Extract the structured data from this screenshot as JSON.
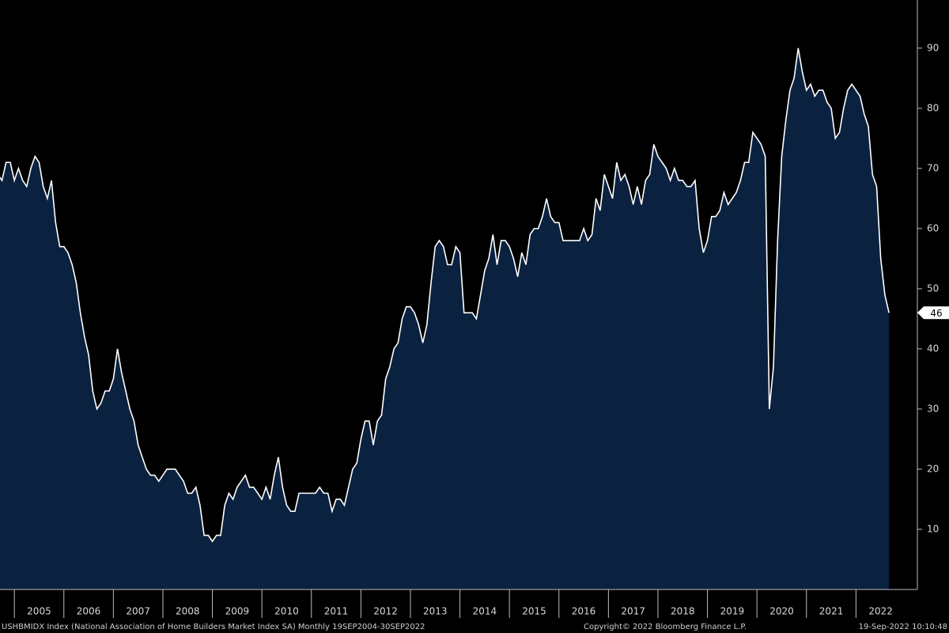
{
  "chart_data": {
    "type": "area",
    "series_name": "USHBMIDX Index (National Association of Home Builders Market Index SA)  Monthly 19SEP2004-30SEP2022",
    "copyright": "Copyright© 2022 Bloomberg Finance L.P.",
    "timestamp": "19-Sep-2022 10:10:48",
    "line_color": "#ffffff",
    "fill_color": "#0b2140",
    "x": [
      2004.667,
      2004.75,
      2004.833,
      2004.917,
      2005,
      2005.083,
      2005.167,
      2005.25,
      2005.333,
      2005.417,
      2005.5,
      2005.583,
      2005.667,
      2005.75,
      2005.833,
      2005.917,
      2006,
      2006.083,
      2006.167,
      2006.25,
      2006.333,
      2006.417,
      2006.5,
      2006.583,
      2006.667,
      2006.75,
      2006.833,
      2006.917,
      2007,
      2007.083,
      2007.167,
      2007.25,
      2007.333,
      2007.417,
      2007.5,
      2007.583,
      2007.667,
      2007.75,
      2007.833,
      2007.917,
      2008,
      2008.083,
      2008.167,
      2008.25,
      2008.333,
      2008.417,
      2008.5,
      2008.583,
      2008.667,
      2008.75,
      2008.833,
      2008.917,
      2009,
      2009.083,
      2009.167,
      2009.25,
      2009.333,
      2009.417,
      2009.5,
      2009.583,
      2009.667,
      2009.75,
      2009.833,
      2009.917,
      2010,
      2010.083,
      2010.167,
      2010.25,
      2010.333,
      2010.417,
      2010.5,
      2010.583,
      2010.667,
      2010.75,
      2010.833,
      2010.917,
      2011,
      2011.083,
      2011.167,
      2011.25,
      2011.333,
      2011.417,
      2011.5,
      2011.583,
      2011.667,
      2011.75,
      2011.833,
      2011.917,
      2012,
      2012.083,
      2012.167,
      2012.25,
      2012.333,
      2012.417,
      2012.5,
      2012.583,
      2012.667,
      2012.75,
      2012.833,
      2012.917,
      2013,
      2013.083,
      2013.167,
      2013.25,
      2013.333,
      2013.417,
      2013.5,
      2013.583,
      2013.667,
      2013.75,
      2013.833,
      2013.917,
      2014,
      2014.083,
      2014.167,
      2014.25,
      2014.333,
      2014.417,
      2014.5,
      2014.583,
      2014.667,
      2014.75,
      2014.833,
      2014.917,
      2015,
      2015.083,
      2015.167,
      2015.25,
      2015.333,
      2015.417,
      2015.5,
      2015.583,
      2015.667,
      2015.75,
      2015.833,
      2015.917,
      2016,
      2016.083,
      2016.167,
      2016.25,
      2016.333,
      2016.417,
      2016.5,
      2016.583,
      2016.667,
      2016.75,
      2016.833,
      2016.917,
      2017,
      2017.083,
      2017.167,
      2017.25,
      2017.333,
      2017.417,
      2017.5,
      2017.583,
      2017.667,
      2017.75,
      2017.833,
      2017.917,
      2018,
      2018.083,
      2018.167,
      2018.25,
      2018.333,
      2018.417,
      2018.5,
      2018.583,
      2018.667,
      2018.75,
      2018.833,
      2018.917,
      2019,
      2019.083,
      2019.167,
      2019.25,
      2019.333,
      2019.417,
      2019.5,
      2019.583,
      2019.667,
      2019.75,
      2019.833,
      2019.917,
      2020,
      2020.083,
      2020.167,
      2020.25,
      2020.333,
      2020.417,
      2020.5,
      2020.583,
      2020.667,
      2020.75,
      2020.833,
      2020.917,
      2021,
      2021.083,
      2021.167,
      2021.25,
      2021.333,
      2021.417,
      2021.5,
      2021.583,
      2021.667,
      2021.75,
      2021.833,
      2021.917,
      2022,
      2022.083,
      2022.167,
      2022.25,
      2022.333,
      2022.417,
      2022.5,
      2022.583,
      2022.667
    ],
    "values": [
      69,
      68,
      71,
      71,
      68,
      70,
      68,
      67,
      70,
      72,
      71,
      67,
      65,
      68,
      61,
      57,
      57,
      56,
      54,
      51,
      46,
      42,
      39,
      33,
      30,
      31,
      33,
      33,
      35,
      40,
      36,
      33,
      30,
      28,
      24,
      22,
      20,
      19,
      19,
      18,
      19,
      20,
      20,
      20,
      19,
      18,
      16,
      16,
      17,
      14,
      9,
      9,
      8,
      9,
      9,
      14,
      16,
      15,
      17,
      18,
      19,
      17,
      17,
      16,
      15,
      17,
      15,
      19,
      22,
      17,
      14,
      13,
      13,
      16,
      16,
      16,
      16,
      16,
      17,
      16,
      16,
      13,
      15,
      15,
      14,
      17,
      20,
      21,
      25,
      28,
      28,
      24,
      28,
      29,
      35,
      37,
      40,
      41,
      45,
      47,
      47,
      46,
      44,
      41,
      44,
      51,
      57,
      58,
      57,
      54,
      54,
      57,
      56,
      46,
      46,
      46,
      45,
      49,
      53,
      55,
      59,
      54,
      58,
      58,
      57,
      55,
      52,
      56,
      54,
      59,
      60,
      60,
      62,
      65,
      62,
      61,
      61,
      58,
      58,
      58,
      58,
      58,
      60,
      58,
      59,
      65,
      63,
      69,
      67,
      65,
      71,
      68,
      69,
      67,
      64,
      67,
      64,
      68,
      69,
      74,
      72,
      71,
      70,
      68,
      70,
      68,
      68,
      67,
      67,
      68,
      60,
      56,
      58,
      62,
      62,
      63,
      66,
      64,
      65,
      66,
      68,
      71,
      71,
      76,
      75,
      74,
      72,
      30,
      37,
      58,
      72,
      78,
      83,
      85,
      90,
      86,
      83,
      84,
      82,
      83,
      83,
      81,
      80,
      75,
      76,
      80,
      83,
      84,
      83,
      82,
      79,
      77,
      69,
      67,
      55,
      49,
      46
    ],
    "xlim": [
      2004.71,
      2023.24
    ],
    "xticks": [
      {
        "value": 2005,
        "label": "2005"
      },
      {
        "value": 2006,
        "label": "2006"
      },
      {
        "value": 2007,
        "label": "2007"
      },
      {
        "value": 2008,
        "label": "2008"
      },
      {
        "value": 2009,
        "label": "2009"
      },
      {
        "value": 2010,
        "label": "2010"
      },
      {
        "value": 2011,
        "label": "2011"
      },
      {
        "value": 2012,
        "label": "2012"
      },
      {
        "value": 2013,
        "label": "2013"
      },
      {
        "value": 2014,
        "label": "2014"
      },
      {
        "value": 2015,
        "label": "2015"
      },
      {
        "value": 2016,
        "label": "2016"
      },
      {
        "value": 2017,
        "label": "2017"
      },
      {
        "value": 2018,
        "label": "2018"
      },
      {
        "value": 2019,
        "label": "2019"
      },
      {
        "value": 2020,
        "label": "2020"
      },
      {
        "value": 2021,
        "label": "2021"
      },
      {
        "value": 2022,
        "label": "2022"
      }
    ],
    "ylim": [
      0,
      98
    ],
    "yticks": [
      10,
      20,
      30,
      40,
      50,
      60,
      70,
      80,
      90
    ]
  }
}
